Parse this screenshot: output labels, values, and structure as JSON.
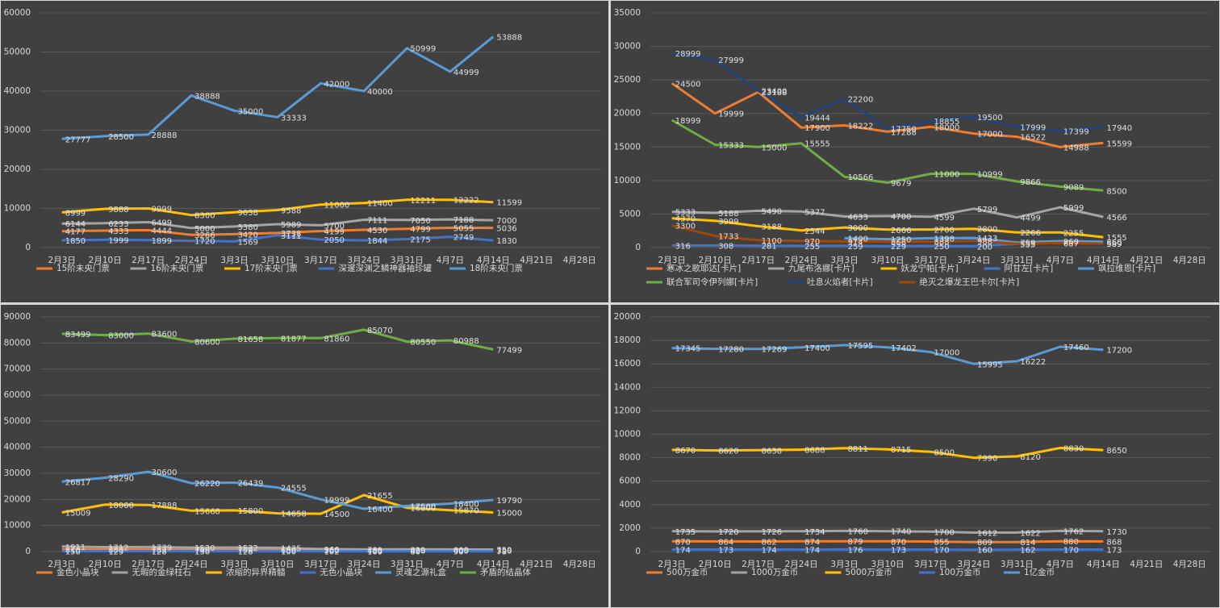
{
  "chart_data": [
    {
      "type": "line",
      "categories": [
        "2月3日",
        "2月10日",
        "2月17日",
        "2月24日",
        "3月3日",
        "3月10日",
        "3月17日",
        "3月24日",
        "3月31日",
        "4月7日",
        "4月14日",
        "4月21日",
        "4月28日"
      ],
      "ylim": [
        0,
        60000
      ],
      "yticks": [
        0,
        10000,
        20000,
        30000,
        40000,
        50000,
        60000
      ],
      "grid": true,
      "series": [
        {
          "name": "15阶未央门票",
          "color": "#ed7d31",
          "values": [
            4177,
            4333,
            4444,
            3266,
            3420,
            3738,
            4199,
            4530,
            4799,
            5055,
            5036,
            null,
            null
          ]
        },
        {
          "name": "16阶未央门票",
          "color": "#a5a5a5",
          "values": [
            6144,
            6233,
            6499,
            5000,
            5380,
            5989,
            5700,
            7111,
            7050,
            7188,
            7000,
            null,
            null
          ]
        },
        {
          "name": "17阶未央门票",
          "color": "#ffc000",
          "values": [
            8999,
            9888,
            9999,
            8300,
            9038,
            9588,
            11000,
            11400,
            12211,
            12222,
            11599,
            null,
            null
          ]
        },
        {
          "name": "深邃深渊之鳞神器袖珍罐",
          "color": "#4472c4",
          "values": [
            1850,
            1999,
            1899,
            1720,
            1569,
            3111,
            2050,
            1844,
            2175,
            2749,
            1830,
            null,
            null
          ]
        },
        {
          "name": "18阶未央门票",
          "color": "#5b9bd5",
          "values": [
            27777,
            28500,
            28888,
            38888,
            35000,
            33333,
            42000,
            40000,
            50999,
            44999,
            53888,
            null,
            null
          ]
        }
      ]
    },
    {
      "type": "line",
      "categories": [
        "2月3日",
        "2月10日",
        "2月17日",
        "2月24日",
        "3月3日",
        "3月10日",
        "3月17日",
        "3月24日",
        "3月31日",
        "4月7日",
        "4月14日",
        "4月21日",
        "4月28日"
      ],
      "ylim": [
        0,
        35000
      ],
      "yticks": [
        0,
        5000,
        10000,
        15000,
        20000,
        25000,
        30000,
        35000
      ],
      "grid": true,
      "series": [
        {
          "name": "寒冰之歌耶达[卡片]",
          "color": "#ed7d31",
          "values": [
            24500,
            19999,
            23188,
            17900,
            18222,
            17288,
            18000,
            17000,
            16522,
            14988,
            15599,
            null,
            null
          ]
        },
        {
          "name": "九尾布洛娜[卡片]",
          "color": "#a5a5a5",
          "values": [
            5333,
            5188,
            5490,
            5377,
            4633,
            4700,
            4599,
            5799,
            4499,
            5999,
            4566,
            null,
            null
          ]
        },
        {
          "name": "妖龙宁帕[卡片]",
          "color": "#ffc000",
          "values": [
            4370,
            3999,
            3188,
            2544,
            3000,
            2666,
            2700,
            2800,
            2266,
            2255,
            1555,
            null,
            null
          ]
        },
        {
          "name": "阿甘左[卡片]",
          "color": "#4472c4",
          "values": [
            316,
            308,
            281,
            255,
            259,
            229,
            250,
            200,
            555,
            687,
            589,
            null,
            null
          ]
        },
        {
          "name": "飒拉维恩[卡片]",
          "color": "#5b9bd5",
          "values": [
            null,
            null,
            null,
            null,
            1400,
            1250,
            1398,
            1433,
            759,
            960,
            860,
            null,
            null
          ]
        },
        {
          "name": "联合军司令伊列娜[卡片]",
          "color": "#70ad47",
          "values": [
            18999,
            15333,
            15000,
            15555,
            10566,
            9679,
            11000,
            10999,
            9866,
            9089,
            8500,
            null,
            null
          ]
        },
        {
          "name": "吐息火焰者[卡片]",
          "color": "#264478",
          "values": [
            28999,
            27999,
            23400,
            19444,
            22200,
            17750,
            18855,
            19500,
            17999,
            17399,
            17940,
            null,
            null
          ]
        },
        {
          "name": "绝灭之爆龙王巴卡尔[卡片]",
          "color": "#9e480e",
          "values": [
            3300,
            1733,
            1100,
            970,
            914,
            866,
            888,
            988,
            555,
            687,
            589,
            null,
            null
          ]
        }
      ]
    },
    {
      "type": "line",
      "categories": [
        "2月3日",
        "2月10日",
        "2月17日",
        "2月24日",
        "3月3日",
        "3月10日",
        "3月17日",
        "3月24日",
        "3月31日",
        "4月7日",
        "4月14日",
        "4月21日",
        "4月28日"
      ],
      "ylim": [
        0,
        90000
      ],
      "yticks": [
        0,
        10000,
        20000,
        30000,
        40000,
        50000,
        60000,
        70000,
        80000,
        90000
      ],
      "grid": true,
      "series": [
        {
          "name": "金色小晶块",
          "color": "#ed7d31",
          "values": [
            810,
            800,
            783,
            700,
            700,
            660,
            560,
            480,
            430,
            400,
            390,
            null,
            null
          ]
        },
        {
          "name": "无暇的金绿柱石",
          "color": "#a5a5a5",
          "values": [
            1911,
            1712,
            1739,
            1530,
            1532,
            1435,
            960,
            789,
            829,
            809,
            759,
            null,
            null
          ]
        },
        {
          "name": "浓缩的异界精髓",
          "color": "#ffc000",
          "values": [
            15009,
            18000,
            17888,
            15668,
            15800,
            14658,
            14500,
            21655,
            16800,
            15870,
            15000,
            null,
            null
          ]
        },
        {
          "name": "无色小晶块",
          "color": "#4472c4",
          "values": [
            150,
            129,
            128,
            130,
            128,
            100,
            102,
            100,
            80,
            90,
            78,
            null,
            null
          ]
        },
        {
          "name": "灵魂之源礼盒",
          "color": "#5b9bd5",
          "values": [
            26817,
            28290,
            30600,
            26220,
            26439,
            24555,
            19999,
            16400,
            17500,
            18400,
            19790,
            null,
            null
          ]
        },
        {
          "name": "矛盾的结晶体",
          "color": "#70ad47",
          "values": [
            83499,
            83000,
            83600,
            80600,
            81658,
            81877,
            81860,
            85070,
            80550,
            80988,
            77499,
            null,
            null
          ]
        }
      ]
    },
    {
      "type": "line",
      "categories": [
        "2月3日",
        "2月10日",
        "2月17日",
        "2月24日",
        "3月3日",
        "3月10日",
        "3月17日",
        "3月24日",
        "3月31日",
        "4月7日",
        "4月14日",
        "4月21日",
        "4月28日"
      ],
      "ylim": [
        0,
        20000
      ],
      "yticks": [
        0,
        2000,
        4000,
        6000,
        8000,
        10000,
        12000,
        14000,
        16000,
        18000,
        20000
      ],
      "grid": true,
      "series": [
        {
          "name": "500万金币",
          "color": "#ed7d31",
          "values": [
            870,
            864,
            862,
            874,
            879,
            870,
            855,
            809,
            814,
            880,
            868,
            null,
            null
          ]
        },
        {
          "name": "1000万金币",
          "color": "#a5a5a5",
          "values": [
            1735,
            1720,
            1726,
            1734,
            1760,
            1740,
            1700,
            1612,
            1622,
            1762,
            1730,
            null,
            null
          ]
        },
        {
          "name": "5000万金币",
          "color": "#ffc000",
          "values": [
            8670,
            8620,
            8638,
            8688,
            8811,
            8715,
            8500,
            7990,
            8120,
            8830,
            8650,
            null,
            null
          ]
        },
        {
          "name": "100万金币",
          "color": "#4472c4",
          "values": [
            174,
            173,
            174,
            174,
            176,
            173,
            170,
            160,
            162,
            170,
            173,
            null,
            null
          ]
        },
        {
          "name": "1亿金币",
          "color": "#5b9bd5",
          "values": [
            17345,
            17280,
            17269,
            17400,
            17595,
            17402,
            17000,
            15995,
            16222,
            17460,
            17200,
            null,
            null
          ]
        }
      ]
    }
  ]
}
